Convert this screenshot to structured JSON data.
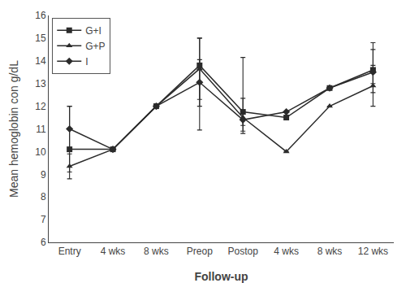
{
  "chart_data": {
    "type": "line",
    "xlabel": "Follow-up",
    "ylabel": "Mean hemoglobin con g/dL",
    "categories": [
      "Entry",
      "4 wks",
      "8 wks",
      "Preop",
      "Postop",
      "4 wks",
      "8 wks",
      "12 wks"
    ],
    "series": [
      {
        "name": "G+I",
        "color": "#2b2b2b",
        "marker": "square",
        "values": [
          10.1,
          10.1,
          12.0,
          13.8,
          11.75,
          11.5,
          12.8,
          13.6
        ],
        "yerr_low": [
          1.0,
          0.0,
          0.0,
          1.5,
          0.6,
          0.0,
          0.0,
          1.0
        ],
        "yerr_high": [
          1.9,
          0.0,
          0.0,
          1.2,
          0.6,
          0.0,
          0.0,
          1.2
        ]
      },
      {
        "name": "G+P",
        "color": "#2b2b2b",
        "marker": "triangle",
        "values": [
          9.35,
          10.1,
          12.0,
          13.65,
          11.5,
          10.0,
          12.0,
          12.9
        ],
        "yerr_low": [
          0.55,
          0.0,
          0.0,
          2.7,
          0.7,
          0.0,
          0.0,
          0.9
        ],
        "yerr_high": [
          0.55,
          0.0,
          0.0,
          1.35,
          2.65,
          0.0,
          0.0,
          0.9
        ]
      },
      {
        "name": "I",
        "color": "#2b2b2b",
        "marker": "diamond",
        "values": [
          11.0,
          10.1,
          12.0,
          13.05,
          11.4,
          11.75,
          12.8,
          13.5
        ],
        "yerr_low": [
          1.0,
          0.0,
          0.0,
          1.05,
          0.5,
          0.0,
          0.0,
          0.5
        ],
        "yerr_high": [
          1.0,
          0.0,
          0.0,
          1.0,
          0.35,
          0.0,
          0.0,
          1.0
        ]
      }
    ],
    "ylim": [
      6,
      16
    ],
    "yticks": [
      6,
      7,
      8,
      9,
      10,
      11,
      12,
      13,
      14,
      15,
      16
    ],
    "grid": false,
    "legend": "upper left"
  }
}
